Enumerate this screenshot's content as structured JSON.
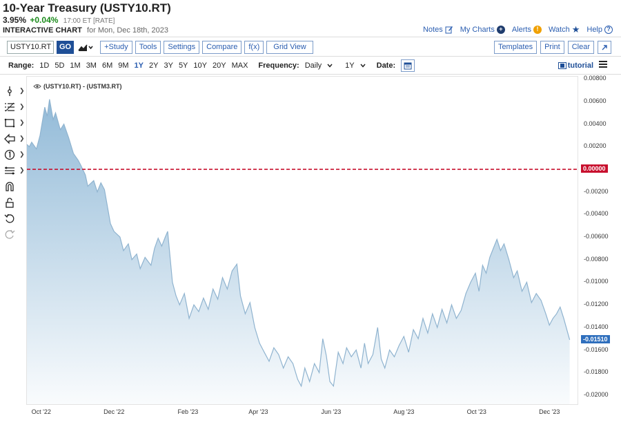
{
  "header": {
    "title": "10-Year Treasury (USTY10.RT)",
    "price": "3.95%",
    "change": "+0.04%",
    "meta": "17:00 ET [RATE]",
    "chart_label": "INTERACTIVE CHART",
    "chart_date": "for Mon, Dec 18th, 2023"
  },
  "toplinks": {
    "notes": "Notes",
    "my_charts": "My Charts",
    "alerts": "Alerts",
    "watch": "Watch",
    "help": "Help"
  },
  "toolbar": {
    "symbol": "USTY10.RT",
    "go": "GO",
    "study": "+Study",
    "tools": "Tools",
    "settings": "Settings",
    "compare": "Compare",
    "fx": "f(x)",
    "grid_view": "Grid View",
    "templates": "Templates",
    "print": "Print",
    "clear": "Clear"
  },
  "rangebar": {
    "range_label": "Range:",
    "ranges": [
      "1D",
      "5D",
      "1M",
      "3M",
      "6M",
      "9M",
      "1Y",
      "2Y",
      "3Y",
      "5Y",
      "10Y",
      "20Y",
      "MAX"
    ],
    "active_range": "1Y",
    "frequency_label": "Frequency:",
    "frequency": "Daily",
    "period": "1Y",
    "date_label": "Date:",
    "tutorial": "tutorial"
  },
  "colors": {
    "accent": "#2a5db0",
    "series_line": "#8fb3cf",
    "zero_line": "#c8102e",
    "last_badge": "#2f6fbd"
  },
  "chart_data": {
    "type": "area",
    "series": [
      {
        "name": "(USTY10.RT) - (USTM3.RT)",
        "points": [
          [
            "2022-09-19",
            0.0022
          ],
          [
            "2022-09-21",
            0.002
          ],
          [
            "2022-09-23",
            0.0024
          ],
          [
            "2022-09-27",
            0.0018
          ],
          [
            "2022-09-30",
            0.003
          ],
          [
            "2022-10-04",
            0.0055
          ],
          [
            "2022-10-06",
            0.0047
          ],
          [
            "2022-10-08",
            0.0062
          ],
          [
            "2022-10-11",
            0.0044
          ],
          [
            "2022-10-13",
            0.005
          ],
          [
            "2022-10-17",
            0.0035
          ],
          [
            "2022-10-20",
            0.004
          ],
          [
            "2022-10-24",
            0.0028
          ],
          [
            "2022-10-28",
            0.0014
          ],
          [
            "2022-11-01",
            0.0008
          ],
          [
            "2022-11-03",
            0.0004
          ],
          [
            "2022-11-07",
            -0.0005
          ],
          [
            "2022-11-09",
            -0.0015
          ],
          [
            "2022-11-14",
            -0.001
          ],
          [
            "2022-11-17",
            -0.002
          ],
          [
            "2022-11-20",
            -0.0012
          ],
          [
            "2022-11-23",
            -0.0018
          ],
          [
            "2022-11-28",
            -0.0048
          ],
          [
            "2022-12-01",
            -0.0055
          ],
          [
            "2022-12-06",
            -0.006
          ],
          [
            "2022-12-09",
            -0.0072
          ],
          [
            "2022-12-13",
            -0.0066
          ],
          [
            "2022-12-16",
            -0.008
          ],
          [
            "2022-12-20",
            -0.0075
          ],
          [
            "2022-12-23",
            -0.0088
          ],
          [
            "2022-12-27",
            -0.0078
          ],
          [
            "2023-01-01",
            -0.0085
          ],
          [
            "2023-01-04",
            -0.007
          ],
          [
            "2023-01-07",
            -0.0061
          ],
          [
            "2023-01-10",
            -0.0068
          ],
          [
            "2023-01-13",
            -0.006
          ],
          [
            "2023-01-15",
            -0.0055
          ],
          [
            "2023-01-19",
            -0.01
          ],
          [
            "2023-01-22",
            -0.0112
          ],
          [
            "2023-01-25",
            -0.012
          ],
          [
            "2023-01-29",
            -0.011
          ],
          [
            "2023-02-02",
            -0.0132
          ],
          [
            "2023-02-06",
            -0.012
          ],
          [
            "2023-02-10",
            -0.0126
          ],
          [
            "2023-02-14",
            -0.0114
          ],
          [
            "2023-02-18",
            -0.0124
          ],
          [
            "2023-02-22",
            -0.0106
          ],
          [
            "2023-02-26",
            -0.0115
          ],
          [
            "2023-03-02",
            -0.0096
          ],
          [
            "2023-03-06",
            -0.0106
          ],
          [
            "2023-03-10",
            -0.009
          ],
          [
            "2023-03-14",
            -0.0084
          ],
          [
            "2023-03-17",
            -0.0112
          ],
          [
            "2023-03-21",
            -0.0128
          ],
          [
            "2023-03-25",
            -0.0118
          ],
          [
            "2023-03-29",
            -0.014
          ],
          [
            "2023-04-02",
            -0.0154
          ],
          [
            "2023-04-06",
            -0.0162
          ],
          [
            "2023-04-10",
            -0.017
          ],
          [
            "2023-04-14",
            -0.0158
          ],
          [
            "2023-04-18",
            -0.0164
          ],
          [
            "2023-04-22",
            -0.0176
          ],
          [
            "2023-04-26",
            -0.0166
          ],
          [
            "2023-04-30",
            -0.0172
          ],
          [
            "2023-05-04",
            -0.0186
          ],
          [
            "2023-05-07",
            -0.0192
          ],
          [
            "2023-05-10",
            -0.0176
          ],
          [
            "2023-05-14",
            -0.0188
          ],
          [
            "2023-05-18",
            -0.0172
          ],
          [
            "2023-05-22",
            -0.018
          ],
          [
            "2023-05-25",
            -0.015
          ],
          [
            "2023-05-28",
            -0.0165
          ],
          [
            "2023-05-31",
            -0.0188
          ],
          [
            "2023-06-03",
            -0.0192
          ],
          [
            "2023-06-07",
            -0.0162
          ],
          [
            "2023-06-11",
            -0.0172
          ],
          [
            "2023-06-14",
            -0.0158
          ],
          [
            "2023-06-18",
            -0.0166
          ],
          [
            "2023-06-22",
            -0.016
          ],
          [
            "2023-06-26",
            -0.0176
          ],
          [
            "2023-06-29",
            -0.0154
          ],
          [
            "2023-07-02",
            -0.0172
          ],
          [
            "2023-07-06",
            -0.0164
          ],
          [
            "2023-07-10",
            -0.014
          ],
          [
            "2023-07-13",
            -0.0168
          ],
          [
            "2023-07-16",
            -0.0176
          ],
          [
            "2023-07-20",
            -0.016
          ],
          [
            "2023-07-24",
            -0.0166
          ],
          [
            "2023-07-28",
            -0.0156
          ],
          [
            "2023-08-01",
            -0.0148
          ],
          [
            "2023-08-05",
            -0.0162
          ],
          [
            "2023-08-09",
            -0.0142
          ],
          [
            "2023-08-13",
            -0.015
          ],
          [
            "2023-08-17",
            -0.0132
          ],
          [
            "2023-08-21",
            -0.0145
          ],
          [
            "2023-08-25",
            -0.0128
          ],
          [
            "2023-08-29",
            -0.014
          ],
          [
            "2023-09-02",
            -0.0124
          ],
          [
            "2023-09-06",
            -0.0136
          ],
          [
            "2023-09-10",
            -0.012
          ],
          [
            "2023-09-14",
            -0.0132
          ],
          [
            "2023-09-18",
            -0.0125
          ],
          [
            "2023-09-22",
            -0.011
          ],
          [
            "2023-09-26",
            -0.01
          ],
          [
            "2023-09-30",
            -0.0092
          ],
          [
            "2023-10-03",
            -0.0108
          ],
          [
            "2023-10-06",
            -0.0085
          ],
          [
            "2023-10-09",
            -0.0092
          ],
          [
            "2023-10-12",
            -0.0078
          ],
          [
            "2023-10-15",
            -0.007
          ],
          [
            "2023-10-18",
            -0.0062
          ],
          [
            "2023-10-21",
            -0.0072
          ],
          [
            "2023-10-24",
            -0.0066
          ],
          [
            "2023-10-28",
            -0.008
          ],
          [
            "2023-11-01",
            -0.0096
          ],
          [
            "2023-11-04",
            -0.009
          ],
          [
            "2023-11-08",
            -0.0108
          ],
          [
            "2023-11-12",
            -0.01
          ],
          [
            "2023-11-16",
            -0.0118
          ],
          [
            "2023-11-20",
            -0.011
          ],
          [
            "2023-11-24",
            -0.0116
          ],
          [
            "2023-11-28",
            -0.0128
          ],
          [
            "2023-12-01",
            -0.0138
          ],
          [
            "2023-12-04",
            -0.0132
          ],
          [
            "2023-12-07",
            -0.0128
          ],
          [
            "2023-12-10",
            -0.0122
          ],
          [
            "2023-12-13",
            -0.0132
          ],
          [
            "2023-12-18",
            -0.0151
          ]
        ]
      }
    ],
    "reference_line": 0.0,
    "last_value": -0.0151,
    "ylim": [
      -0.0208,
      0.0082
    ],
    "yticks": [
      "0.00800",
      "0.00600",
      "0.00400",
      "0.00200",
      "0.00000",
      "-0.00200",
      "-0.00400",
      "-0.00600",
      "-0.00800",
      "-0.01000",
      "-0.01200",
      "-0.01400",
      "-0.01600",
      "-0.01800",
      "-0.02000"
    ],
    "ytick_values": [
      0.008,
      0.006,
      0.004,
      0.002,
      0.0,
      -0.002,
      -0.004,
      -0.006,
      -0.008,
      -0.01,
      -0.012,
      -0.014,
      -0.016,
      -0.018,
      -0.02
    ],
    "xlim": [
      "2022-09-19",
      "2023-12-24"
    ],
    "xticks": [
      {
        "label": "Oct '22",
        "date": "2022-10-01"
      },
      {
        "label": "Dec '22",
        "date": "2022-12-01"
      },
      {
        "label": "Feb '23",
        "date": "2023-02-01"
      },
      {
        "label": "Apr '23",
        "date": "2023-04-01"
      },
      {
        "label": "Jun '23",
        "date": "2023-06-01"
      },
      {
        "label": "Aug '23",
        "date": "2023-08-01"
      },
      {
        "label": "Oct '23",
        "date": "2023-10-01"
      },
      {
        "label": "Dec '23",
        "date": "2023-12-01"
      }
    ],
    "last_label": "-0.01510",
    "zero_label": "0.00000",
    "grid": false
  }
}
